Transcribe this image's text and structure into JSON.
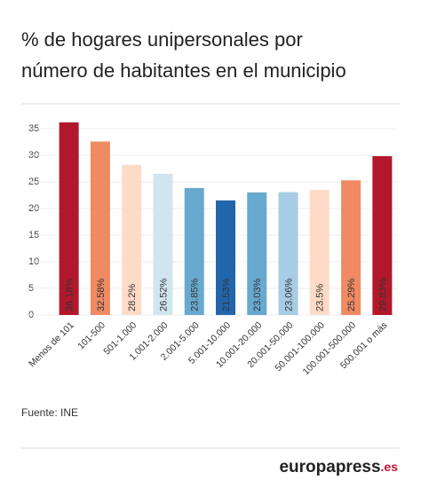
{
  "chart_data": {
    "type": "bar",
    "title_lines": [
      "% de hogares unipersonales por",
      "número de habitantes en el municipio"
    ],
    "categories": [
      "Menos de 101",
      "101-500",
      "501-1.000",
      "1.001-2.000",
      "2.001-5.000",
      "5.001-10.000",
      "10.001-20.000",
      "20.001-50.000",
      "50.001-100.000",
      "100.001-500.000",
      "500.001 o más"
    ],
    "values": [
      36.18,
      32.58,
      28.2,
      26.52,
      23.85,
      21.53,
      23.03,
      23.06,
      23.5,
      25.29,
      29.83
    ],
    "value_labels": [
      "36.18%",
      "32.58%",
      "28.2%",
      "26.52%",
      "23.85%",
      "21.53%",
      "23.03%",
      "23.06%",
      "23.5%",
      "25.29%",
      "29.83%"
    ],
    "colors": [
      "#b2182b",
      "#ef8a62",
      "#fddbc7",
      "#d1e5f0",
      "#67a9cf",
      "#2166ac",
      "#67a9cf",
      "#a6cde3",
      "#fddbc7",
      "#ef8a62",
      "#b2182b"
    ],
    "ylim": [
      0,
      35
    ],
    "yticks": [
      0,
      5,
      10,
      15,
      20,
      25,
      30,
      35
    ],
    "grid": true,
    "source": "Fuente: INE",
    "logo": {
      "main": "europapress",
      "suffix": ".es"
    }
  }
}
